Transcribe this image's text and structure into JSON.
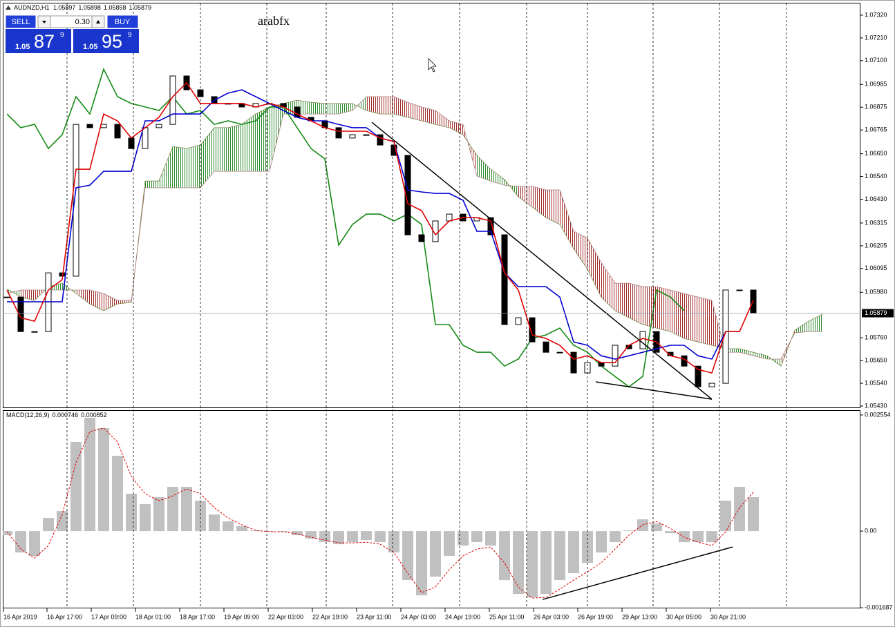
{
  "trade_panel": {
    "sell": "SELL",
    "buy": "BUY",
    "lot": "0.30",
    "sell_price": [
      "1.05",
      "87",
      "9"
    ],
    "buy_price": [
      "1.05",
      "95",
      "9"
    ]
  },
  "chart_data": [
    {
      "type": "ichimoku-candles",
      "symbol": "AUDNZD,H1",
      "bar_open": 1.05897,
      "bar_high": 1.05898,
      "bar_low": 1.05858,
      "watermark": "arabfx",
      "x": [
        0,
        1,
        2,
        3,
        4,
        5,
        6,
        7,
        8,
        9,
        10,
        11,
        12,
        13,
        14,
        15,
        16,
        17,
        18,
        19,
        20,
        21,
        22,
        23,
        24,
        25,
        26,
        27,
        28,
        29,
        30,
        31,
        32,
        33,
        34,
        35,
        36,
        37,
        38,
        39,
        40,
        41,
        42,
        43,
        44,
        45,
        46,
        47,
        48,
        49,
        50,
        51,
        52,
        53,
        54,
        55,
        56,
        57,
        58,
        59
      ],
      "xlim": [
        -0.3,
        61.75
      ],
      "xticks": [
        {
          "value": -0.25,
          "label": "16 Apr 2019"
        },
        {
          "value": 2.9,
          "label": "16 Apr 17:00"
        },
        {
          "value": 6.1,
          "label": "17 Apr 09:00"
        },
        {
          "value": 9.3,
          "label": "18 Apr 01:00"
        },
        {
          "value": 12.5,
          "label": "18 Apr 17:00"
        },
        {
          "value": 15.7,
          "label": "19 Apr 09:00"
        },
        {
          "value": 18.9,
          "label": "22 Apr 03:00"
        },
        {
          "value": 22.1,
          "label": "22 Apr 19:00"
        },
        {
          "value": 25.3,
          "label": "23 Apr 11:00"
        },
        {
          "value": 28.5,
          "label": "24 Apr 03:00"
        },
        {
          "value": 31.7,
          "label": "24 Apr 19:00"
        },
        {
          "value": 34.9,
          "label": "25 Apr 11:00"
        },
        {
          "value": 38.1,
          "label": "26 Apr 03:00"
        },
        {
          "value": 41.3,
          "label": "26 Apr 19:00"
        },
        {
          "value": 44.5,
          "label": "29 Apr 13:00"
        },
        {
          "value": 47.7,
          "label": "30 Apr 05:00"
        },
        {
          "value": 50.9,
          "label": "30 Apr 21:00"
        }
      ],
      "period_separators": [
        4.35,
        9.15,
        14,
        18.8,
        23.1,
        27.9,
        32.75,
        37.6,
        42,
        46.75,
        51.55,
        56.4
      ],
      "ylim": [
        1.0542,
        1.0738
      ],
      "yticks": [
        {
          "value": 1.0732,
          "label": "1.07320"
        },
        {
          "value": 1.0721,
          "label": "1.07210"
        },
        {
          "value": 1.071,
          "label": "1.07100"
        },
        1.06985,
        1.06875,
        1.06765,
        {
          "value": 1.0665,
          "label": "1.06650"
        },
        {
          "value": 1.0654,
          "label": "1.06540"
        },
        {
          "value": 1.0643,
          "label": "1.06430"
        },
        1.06315,
        1.06205,
        1.06095,
        {
          "value": 1.0598,
          "label": "1.05980"
        },
        {
          "value": 1.0576,
          "label": "1.05760"
        },
        {
          "value": 1.0565,
          "label": "1.05650"
        },
        {
          "value": 1.0554,
          "label": "1.05540"
        },
        {
          "value": 1.0543,
          "label": "1.05430"
        }
      ],
      "grid": false,
      "candle_up": "#ffffff",
      "candle_down": "#000000",
      "candle_outline": "#000000",
      "price_line_color": "#8a9aa8",
      "close": {
        "values": [
          1.05957,
          1.0579,
          1.0579,
          1.06074,
          1.06058,
          1.06792,
          1.06776,
          1.06792,
          1.06726,
          1.06675,
          1.06776,
          1.06792,
          1.07026,
          1.06959,
          1.06926,
          1.06893,
          1.06893,
          1.06876,
          1.06893,
          1.06893,
          1.06876,
          1.06826,
          1.06809,
          1.06776,
          1.06726,
          1.06742,
          1.06742,
          1.06692,
          1.06642,
          1.06258,
          1.06225,
          1.06325,
          1.06358,
          1.06325,
          1.06341,
          1.06258,
          1.05824,
          1.05857,
          1.0574,
          1.0569,
          1.0569,
          1.0559,
          1.0564,
          1.05623,
          1.05724,
          1.05707,
          1.0579,
          1.0569,
          1.05673,
          1.05623,
          1.05523,
          1.0554,
          1.05991,
          1.05991,
          1.05879,
          null,
          null,
          null,
          null,
          null
        ]
      },
      "tenkan": {
        "color": "#e00000",
        "values": [
          1.05991,
          1.05857,
          1.0584,
          1.05991,
          1.06041,
          1.06575,
          1.06575,
          1.06842,
          1.06809,
          1.06726,
          1.06776,
          1.06826,
          1.06926,
          1.06993,
          1.06893,
          1.06893,
          1.06893,
          1.06893,
          1.06876,
          1.06893,
          1.06876,
          1.06842,
          1.06809,
          1.06776,
          1.06759,
          1.06759,
          1.06759,
          1.06726,
          1.06709,
          1.06408,
          1.06375,
          1.06258,
          1.06325,
          1.06341,
          1.06341,
          1.06325,
          1.06074,
          1.05991,
          1.05774,
          1.05757,
          1.05724,
          1.05657,
          1.05673,
          1.0564,
          1.0564,
          1.05724,
          1.05757,
          1.0574,
          1.05673,
          1.05657,
          1.05607,
          1.0559,
          1.0579,
          1.0579,
          1.05941,
          null,
          null,
          null,
          null,
          null
        ]
      },
      "kijun": {
        "color": "#0000d0",
        "values": [
          1.05934,
          1.05934,
          1.05934,
          1.05934,
          1.05934,
          1.06485,
          1.06498,
          1.06565,
          1.06565,
          1.06565,
          1.06809,
          1.06809,
          1.06842,
          1.06842,
          1.06842,
          1.06909,
          1.06943,
          1.06959,
          1.06926,
          1.06893,
          1.06859,
          1.06826,
          1.06809,
          1.06809,
          1.06792,
          1.06776,
          1.06776,
          1.06726,
          1.06709,
          1.06475,
          1.06465,
          1.06458,
          1.06458,
          1.06425,
          1.06275,
          1.06275,
          1.06074,
          1.06007,
          1.06007,
          1.06007,
          1.05957,
          1.0574,
          1.05724,
          1.05673,
          1.05657,
          1.05673,
          1.0569,
          1.05707,
          1.05724,
          1.05724,
          1.05673,
          1.05657,
          1.0579,
          1.0579,
          null,
          null,
          null,
          null,
          null,
          null
        ]
      },
      "chikou": {
        "color": "#138a13",
        "values": [
          1.06842,
          1.06776,
          1.06792,
          1.06675,
          1.06742,
          1.06926,
          1.06842,
          1.07059,
          1.06926,
          1.06893,
          1.06876,
          1.06859,
          1.06926,
          1.06842,
          1.06859,
          1.06792,
          1.06809,
          1.06792,
          1.06809,
          1.06876,
          1.06876,
          1.06776,
          1.06675,
          1.06625,
          1.06208,
          1.06308,
          1.06358,
          1.06358,
          1.06325,
          1.06358,
          1.06308,
          1.05824,
          1.05824,
          1.05724,
          1.0569,
          1.0569,
          1.05623,
          1.05657,
          1.05757,
          1.05774,
          1.05807,
          1.05724,
          1.0569,
          1.05623,
          1.05573,
          1.05523,
          1.05573,
          1.05991,
          1.05957,
          1.05891,
          null,
          null,
          null,
          null,
          null,
          null,
          null,
          null,
          null,
          null
        ]
      },
      "senkou_a": {
        "color": "#7a8a4a",
        "values": [
          1.05997,
          1.05957,
          1.05941,
          1.06007,
          1.06024,
          1.05974,
          1.05924,
          1.05891,
          1.05924,
          1.05931,
          1.06518,
          1.06518,
          1.06685,
          1.06675,
          1.06692,
          1.06776,
          1.06776,
          1.06792,
          1.06842,
          1.06876,
          1.06893,
          1.06909,
          1.06899,
          1.06893,
          1.06893,
          1.06893,
          1.06859,
          1.06842,
          1.06842,
          1.06826,
          1.06809,
          1.06792,
          1.06776,
          1.06742,
          1.06642,
          1.06575,
          1.06525,
          1.06442,
          1.06392,
          1.06341,
          1.06308,
          1.06191,
          1.06091,
          1.05957,
          1.05891,
          1.05857,
          1.05824,
          1.05807,
          1.0579,
          1.05757,
          1.0574,
          1.05724,
          1.05707,
          1.05707,
          1.0569,
          1.05673,
          1.05623,
          1.05797,
          1.0584,
          1.05874
        ]
      },
      "senkou_b": {
        "color": "#b08080",
        "values": [
          1.05974,
          1.05991,
          1.05991,
          1.05991,
          1.05991,
          1.05991,
          1.05991,
          1.05974,
          1.05941,
          1.05941,
          1.06485,
          1.06485,
          1.06485,
          1.06485,
          1.06485,
          1.06565,
          1.06565,
          1.06565,
          1.06565,
          1.06565,
          1.06842,
          1.06842,
          1.06842,
          1.06842,
          1.06842,
          1.06859,
          1.06926,
          1.06926,
          1.06926,
          1.06899,
          1.06876,
          1.06859,
          1.06809,
          1.06792,
          1.06542,
          1.06518,
          1.06498,
          1.06492,
          1.06492,
          1.06475,
          1.06475,
          1.06275,
          1.06241,
          1.06124,
          1.06024,
          1.06024,
          1.06007,
          1.06007,
          1.05991,
          1.05974,
          1.05957,
          1.05941,
          1.0569,
          1.0569,
          1.05673,
          1.05657,
          1.05657,
          1.05784,
          1.0579,
          1.0579
        ]
      },
      "cloud_up": "#2c8c2c",
      "cloud_down": "#a32a2a",
      "trendline_color": "#000000",
      "trendlines": [
        {
          "x1": 26.4,
          "y1": 1.06802,
          "x2": 51,
          "y2": 1.05463
        },
        {
          "x1": 42.6,
          "y1": 1.05547,
          "x2": 51,
          "y2": 1.05463
        }
      ]
    },
    {
      "type": "macd",
      "label": "MACD(12,26,9)",
      "x": [
        0,
        1,
        2,
        3,
        4,
        5,
        6,
        7,
        8,
        9,
        10,
        11,
        12,
        13,
        14,
        15,
        16,
        17,
        18,
        19,
        20,
        21,
        22,
        23,
        24,
        25,
        26,
        27,
        28,
        29,
        30,
        31,
        32,
        33,
        34,
        35,
        36,
        37,
        38,
        39,
        40,
        41,
        42,
        43,
        44,
        45,
        46,
        47,
        48,
        49,
        50,
        51,
        52,
        53,
        54,
        55,
        56,
        57,
        58,
        59
      ],
      "xlim": [
        -0.3,
        61.75
      ],
      "ylim": [
        -0.0017,
        0.00266
      ],
      "yticks": [
        0.002554,
        {
          "value": 0,
          "label": "0.00"
        },
        -0.001687
      ],
      "histogram": {
        "color": "#c0c0c0",
        "values": [
          -9.1e-05,
          -0.000471,
          -0.000547,
          0.000289,
          0.000441,
          0.001961,
          0.002493,
          0.002265,
          0.001657,
          0.000821,
          0.000593,
          0.000745,
          0.000973,
          0.000973,
          0.000669,
          0.000365,
          0.000213,
          0.000106,
          1.5e-05,
          -1.5e-05,
          -1.5e-05,
          -9.1e-05,
          -0.000167,
          -0.000243,
          -0.000289,
          -0.000243,
          -0.000198,
          -0.000243,
          -0.000471,
          -0.001079,
          -0.001414,
          -0.001003,
          -0.000547,
          -0.000319,
          -0.000243,
          -0.000319,
          -0.001079,
          -0.001383,
          -0.001459,
          -0.001383,
          -0.001079,
          -0.000927,
          -0.000699,
          -0.000471,
          -0.000243,
          1.5e-05,
          0.000258,
          0.000167,
          -4.6e-05,
          -0.000243,
          -0.000243,
          -0.000243,
          0.000669,
          0.000973,
          0.000746,
          null,
          null,
          null,
          null,
          null
        ]
      },
      "signal": {
        "color": "#e00000",
        "values": [
          -1.5e-05,
          -0.000395,
          -0.000593,
          -0.000319,
          0.000365,
          0.001505,
          0.002189,
          0.002265,
          0.001961,
          0.001201,
          0.000821,
          0.000669,
          0.000775,
          0.000927,
          0.000821,
          0.000517,
          0.000289,
          0.000137,
          1.5e-05,
          -1.5e-05,
          -1.5e-05,
          -6.1e-05,
          -0.000137,
          -0.000198,
          -0.000258,
          -0.000258,
          -0.000243,
          -0.000289,
          -0.000471,
          -0.000927,
          -0.001353,
          -0.001231,
          -0.000851,
          -0.000547,
          -0.000395,
          -0.00035,
          -0.000699,
          -0.001231,
          -0.001474,
          -0.001459,
          -0.001277,
          -0.001079,
          -0.000897,
          -0.000699,
          -0.000395,
          -9.1e-05,
          0.000137,
          0.000213,
          6.1e-05,
          -0.000137,
          -0.000243,
          -0.000319,
          -1.5e-05,
          0.000517,
          0.000852,
          null,
          null,
          null,
          null,
          null
        ]
      },
      "trendline_color": "#000000",
      "trendlines": [
        {
          "x1": 38.75,
          "y1": -0.001505,
          "x2": 52.5,
          "y2": -0.00035
        }
      ]
    }
  ]
}
